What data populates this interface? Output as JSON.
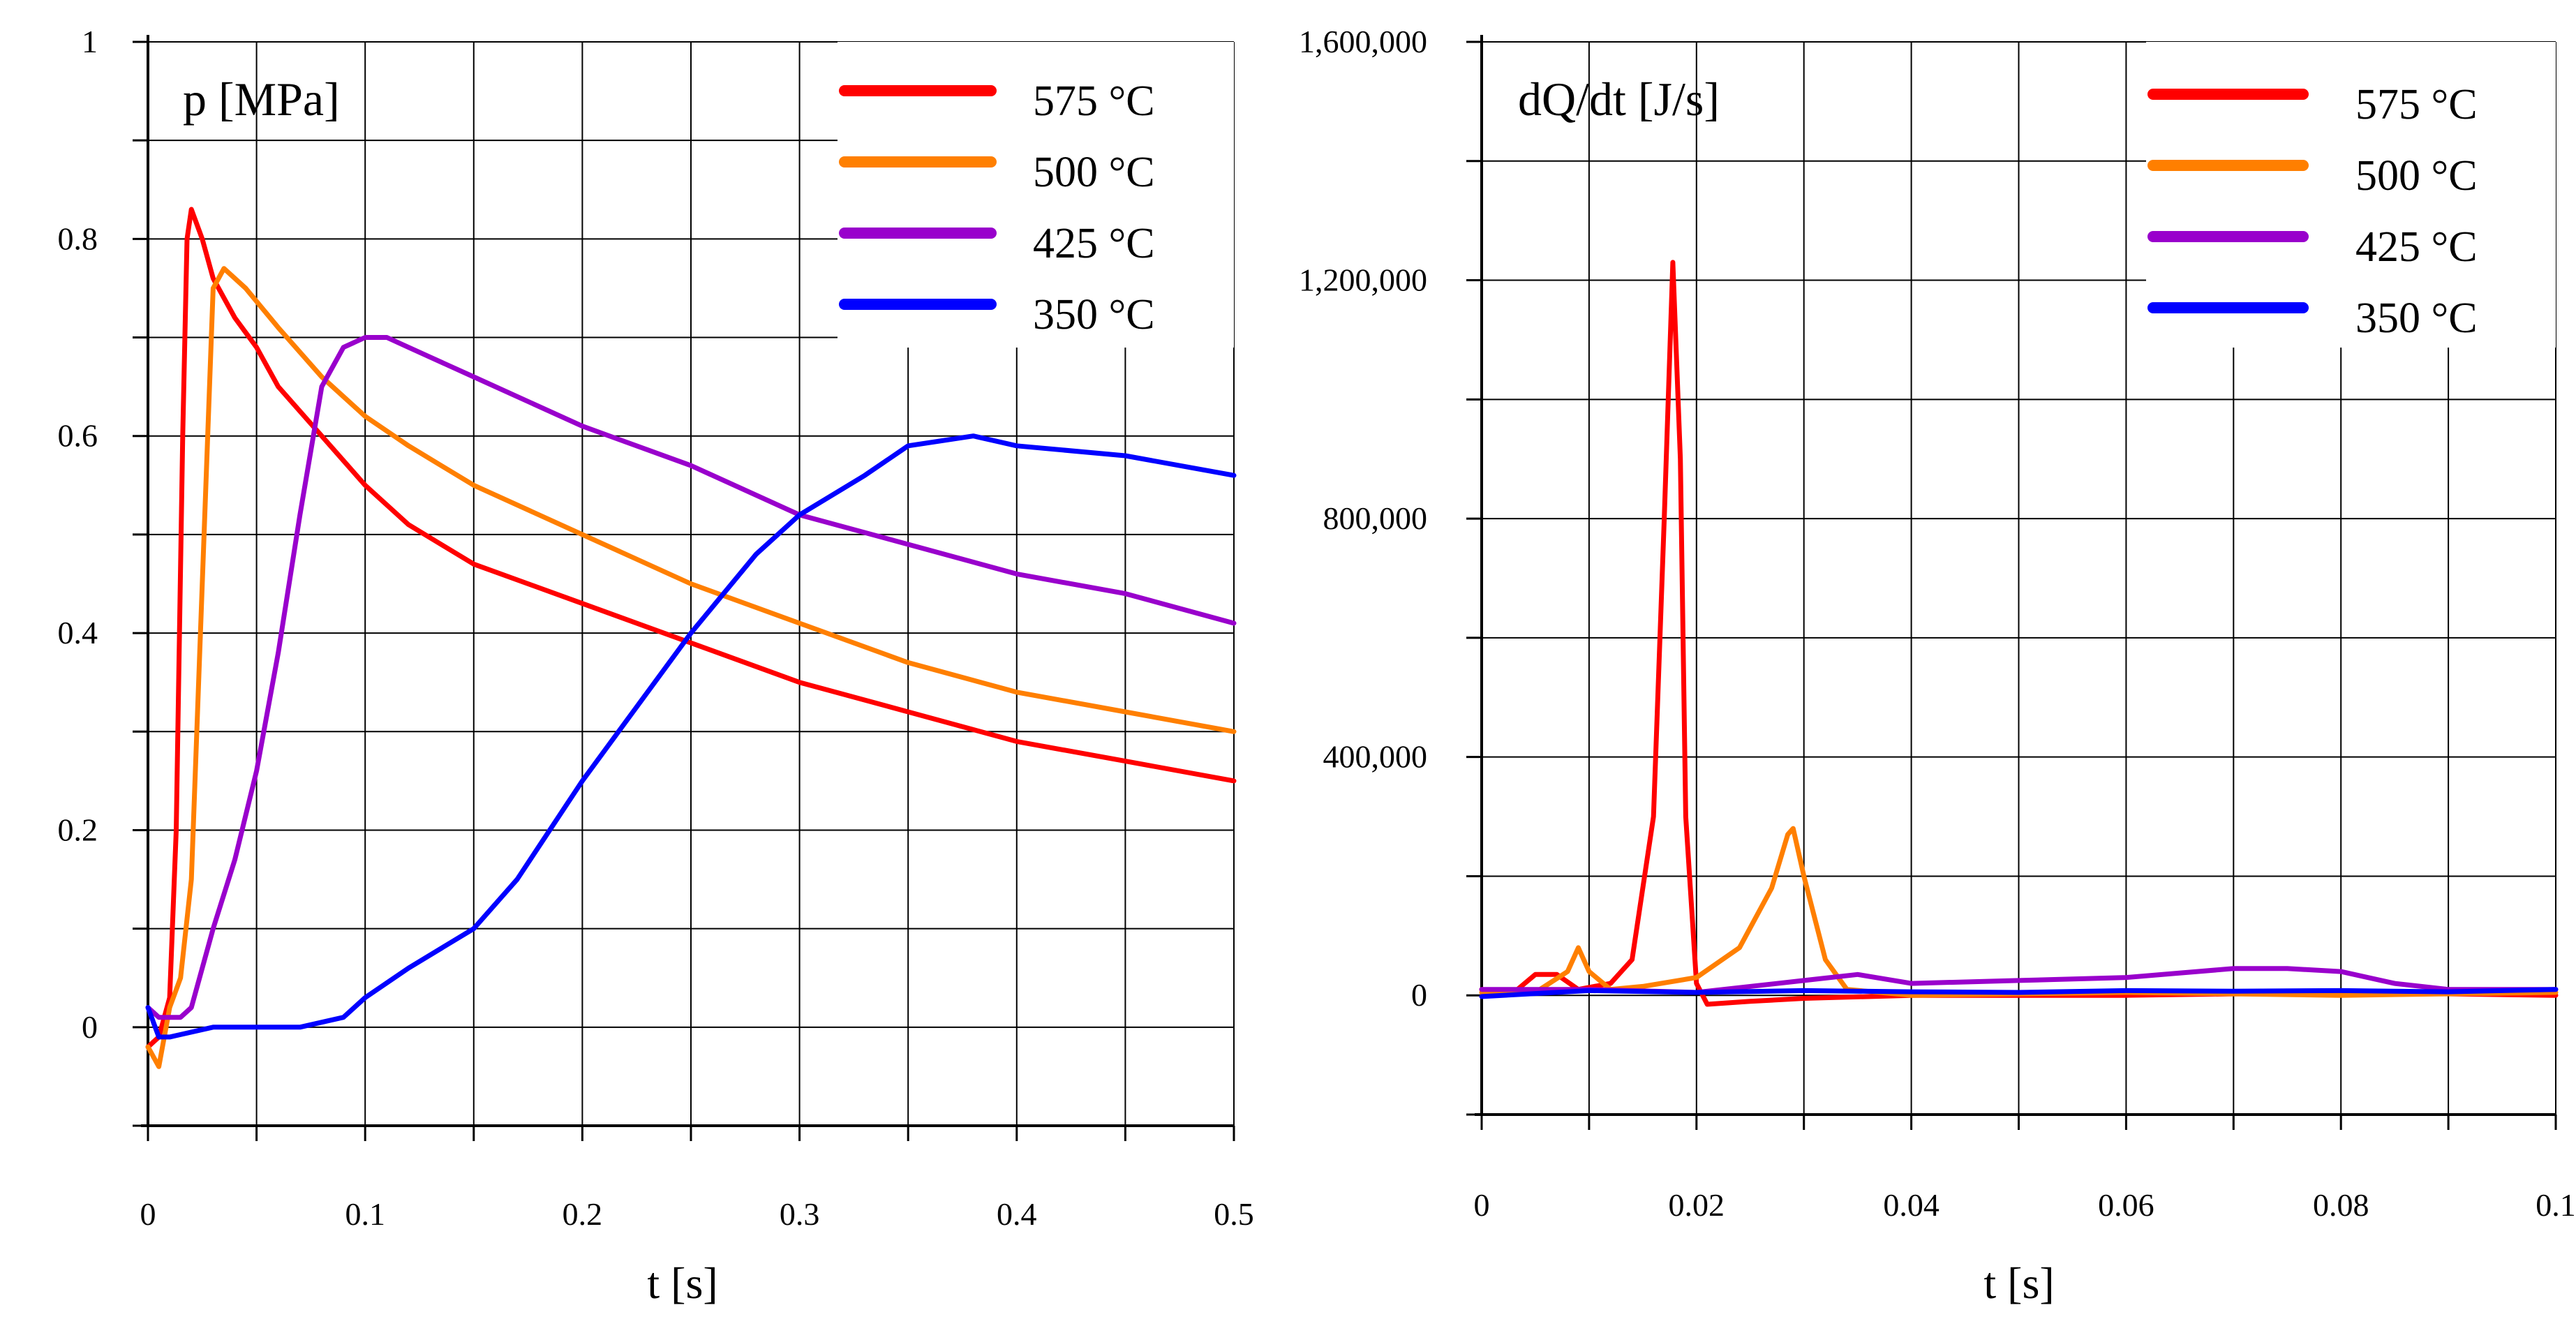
{
  "chart_data": [
    {
      "type": "line",
      "title": "p [MPa]",
      "xlabel": "t [s]",
      "ylabel": "p [MPa]",
      "xlim": [
        0,
        0.5
      ],
      "ylim": [
        -0.1,
        1.0
      ],
      "x_ticks": [
        0,
        0.1,
        0.2,
        0.3,
        0.4,
        0.5
      ],
      "x_tick_labels": [
        "0",
        "0.1",
        "0.2",
        "0.3",
        "0.4",
        "0.5"
      ],
      "y_ticks": [
        0,
        0.2,
        0.4,
        0.6,
        0.8,
        1.0
      ],
      "y_tick_labels": [
        "0",
        "0.2",
        "0.4",
        "0.6",
        "0.8",
        "1"
      ],
      "grid": true,
      "legend": "top-right",
      "series": [
        {
          "name": "575 °C",
          "color": "#ff0000",
          "x": [
            0,
            0.005,
            0.01,
            0.013,
            0.016,
            0.018,
            0.02,
            0.025,
            0.03,
            0.04,
            0.05,
            0.06,
            0.08,
            0.1,
            0.12,
            0.15,
            0.2,
            0.25,
            0.3,
            0.35,
            0.4,
            0.45,
            0.5
          ],
          "y": [
            -0.02,
            -0.01,
            0.03,
            0.2,
            0.6,
            0.8,
            0.83,
            0.8,
            0.76,
            0.72,
            0.69,
            0.65,
            0.6,
            0.55,
            0.51,
            0.47,
            0.43,
            0.39,
            0.35,
            0.32,
            0.29,
            0.27,
            0.25
          ]
        },
        {
          "name": "500 °C",
          "color": "#ff7f00",
          "x": [
            0,
            0.005,
            0.01,
            0.015,
            0.02,
            0.025,
            0.03,
            0.035,
            0.045,
            0.06,
            0.08,
            0.1,
            0.12,
            0.15,
            0.2,
            0.25,
            0.3,
            0.35,
            0.4,
            0.45,
            0.5
          ],
          "y": [
            -0.02,
            -0.04,
            0.02,
            0.05,
            0.15,
            0.45,
            0.75,
            0.77,
            0.75,
            0.71,
            0.66,
            0.62,
            0.59,
            0.55,
            0.5,
            0.45,
            0.41,
            0.37,
            0.34,
            0.32,
            0.3
          ]
        },
        {
          "name": "425 °C",
          "color": "#9900cc",
          "x": [
            0,
            0.005,
            0.01,
            0.015,
            0.02,
            0.03,
            0.04,
            0.05,
            0.06,
            0.07,
            0.08,
            0.09,
            0.1,
            0.11,
            0.12,
            0.15,
            0.2,
            0.25,
            0.3,
            0.35,
            0.4,
            0.45,
            0.5
          ],
          "y": [
            0.02,
            0.01,
            0.01,
            0.01,
            0.02,
            0.1,
            0.17,
            0.26,
            0.38,
            0.52,
            0.65,
            0.69,
            0.7,
            0.7,
            0.69,
            0.66,
            0.61,
            0.57,
            0.52,
            0.49,
            0.46,
            0.44,
            0.41
          ]
        },
        {
          "name": "350 °C",
          "color": "#0000ff",
          "x": [
            0,
            0.005,
            0.01,
            0.03,
            0.05,
            0.07,
            0.09,
            0.1,
            0.12,
            0.15,
            0.17,
            0.2,
            0.22,
            0.25,
            0.28,
            0.3,
            0.33,
            0.35,
            0.38,
            0.4,
            0.45,
            0.5
          ],
          "y": [
            0.02,
            -0.01,
            -0.01,
            0.0,
            0.0,
            0.0,
            0.01,
            0.03,
            0.06,
            0.1,
            0.15,
            0.25,
            0.31,
            0.4,
            0.48,
            0.52,
            0.56,
            0.59,
            0.6,
            0.59,
            0.58,
            0.56
          ]
        }
      ]
    },
    {
      "type": "line",
      "title": "dQ/dt [J/s]",
      "xlabel": "t [s]",
      "ylabel": "dQ/dt [J/s]",
      "xlim": [
        0,
        0.1
      ],
      "ylim": [
        -200000,
        1600000
      ],
      "x_ticks": [
        0,
        0.02,
        0.04,
        0.06,
        0.08,
        0.1
      ],
      "x_tick_labels": [
        "0",
        "0.02",
        "0.04",
        "0.06",
        "0.08",
        "0.1"
      ],
      "y_ticks": [
        0,
        400000,
        800000,
        1200000,
        1600000
      ],
      "y_tick_labels": [
        "0",
        "400,000",
        "800,000",
        "1,200,000",
        "1,600,000"
      ],
      "grid": true,
      "legend": "top-right",
      "series": [
        {
          "name": "575 °C",
          "color": "#ff0000",
          "x": [
            0,
            0.003,
            0.005,
            0.007,
            0.009,
            0.012,
            0.014,
            0.016,
            0.017,
            0.0178,
            0.0185,
            0.019,
            0.02,
            0.021,
            0.025,
            0.03,
            0.04,
            0.06,
            0.08,
            0.1
          ],
          "y": [
            10000,
            5000,
            35000,
            35000,
            10000,
            20000,
            60000,
            300000,
            800000,
            1230000,
            900000,
            300000,
            20000,
            -15000,
            -10000,
            -5000,
            0,
            0,
            5000,
            0
          ]
        },
        {
          "name": "500 °C",
          "color": "#ff7f00",
          "x": [
            0,
            0.005,
            0.008,
            0.009,
            0.01,
            0.012,
            0.015,
            0.02,
            0.024,
            0.027,
            0.0285,
            0.029,
            0.03,
            0.032,
            0.034,
            0.04,
            0.06,
            0.08,
            0.1
          ],
          "y": [
            5000,
            5000,
            40000,
            80000,
            40000,
            10000,
            15000,
            30000,
            80000,
            180000,
            270000,
            280000,
            200000,
            60000,
            10000,
            0,
            5000,
            0,
            5000
          ]
        },
        {
          "name": "425 °C",
          "color": "#9900cc",
          "x": [
            0,
            0.01,
            0.02,
            0.03,
            0.035,
            0.04,
            0.05,
            0.06,
            0.07,
            0.075,
            0.08,
            0.085,
            0.09,
            0.1
          ],
          "y": [
            10000,
            10000,
            5000,
            25000,
            35000,
            20000,
            25000,
            30000,
            45000,
            45000,
            40000,
            20000,
            10000,
            10000
          ]
        },
        {
          "name": "350 °C",
          "color": "#0000ff",
          "x": [
            0,
            0.01,
            0.02,
            0.03,
            0.04,
            0.05,
            0.06,
            0.07,
            0.08,
            0.09,
            0.1
          ],
          "y": [
            -2000,
            8000,
            5000,
            8000,
            6000,
            5000,
            8000,
            7000,
            8000,
            6000,
            10000
          ]
        }
      ]
    }
  ]
}
